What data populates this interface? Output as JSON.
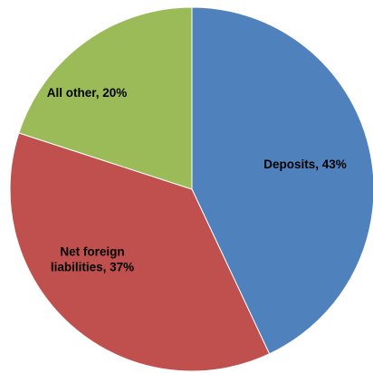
{
  "chart_data": {
    "type": "pie",
    "title": "",
    "slices": [
      {
        "label_lines": [
          "Deposits, 43%"
        ],
        "category": "Deposits",
        "value": 43,
        "color": "#4F81BD"
      },
      {
        "label_lines": [
          "Net foreign",
          "liabilities, 37%"
        ],
        "category": "Net foreign liabilities",
        "value": 37,
        "color": "#C0504D"
      },
      {
        "label_lines": [
          "All other, 20%"
        ],
        "category": "All other",
        "value": 20,
        "color": "#9BBB59"
      }
    ],
    "start_angle_deg": 0,
    "direction": "clockwise",
    "legend": "none",
    "data_labels": "inside"
  }
}
